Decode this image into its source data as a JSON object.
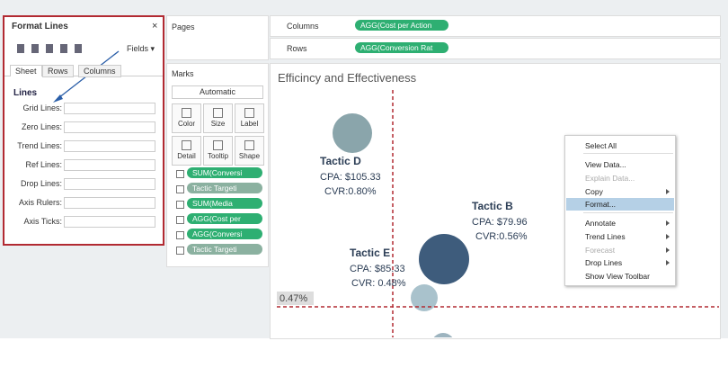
{
  "format_pane": {
    "title": "Format Lines",
    "close": "×",
    "fields": "Fields",
    "tabs": [
      "Sheet",
      "Rows",
      "Columns"
    ],
    "section": "Lines",
    "rows": [
      "Grid Lines:",
      "Zero Lines:",
      "Trend Lines:",
      "Ref Lines:",
      "Drop Lines:",
      "Axis Rulers:",
      "Axis Ticks:"
    ]
  },
  "shelves": {
    "pages": "Pages",
    "columns_label": "Columns",
    "columns_pill": "AGG(Cost per Action",
    "rows_label": "Rows",
    "rows_pill": "AGG(Conversion Rat"
  },
  "marks": {
    "title": "Marks",
    "mark_type": "Automatic",
    "buttons": [
      "Color",
      "Size",
      "Label",
      "Detail",
      "Tooltip",
      "Shape"
    ],
    "pills": [
      "SUM(Conversi",
      "Tactic Targeti",
      "SUM(Media",
      "AGG(Cost per",
      "AGG(Conversi",
      "Tactic Targeti"
    ]
  },
  "view": {
    "title": "Efficincy and Effectiveness",
    "reference_label": "0.47%",
    "tactics": [
      {
        "name": "Tactic D",
        "cpa": "CPA: $105.33",
        "cvr": "CVR:0.80%"
      },
      {
        "name": "Tactic B",
        "cpa": "CPA: $79.96",
        "cvr": "CVR:0.56%"
      },
      {
        "name": "Tactic E",
        "cpa": "CPA: $85.33",
        "cvr": "CVR: 0.48%"
      }
    ]
  },
  "context_menu": {
    "items": [
      "Select All",
      "View Data...",
      "Explain Data...",
      "Copy",
      "Format...",
      "Annotate",
      "Trend Lines",
      "Forecast",
      "Drop Lines",
      "Show View Toolbar"
    ]
  }
}
